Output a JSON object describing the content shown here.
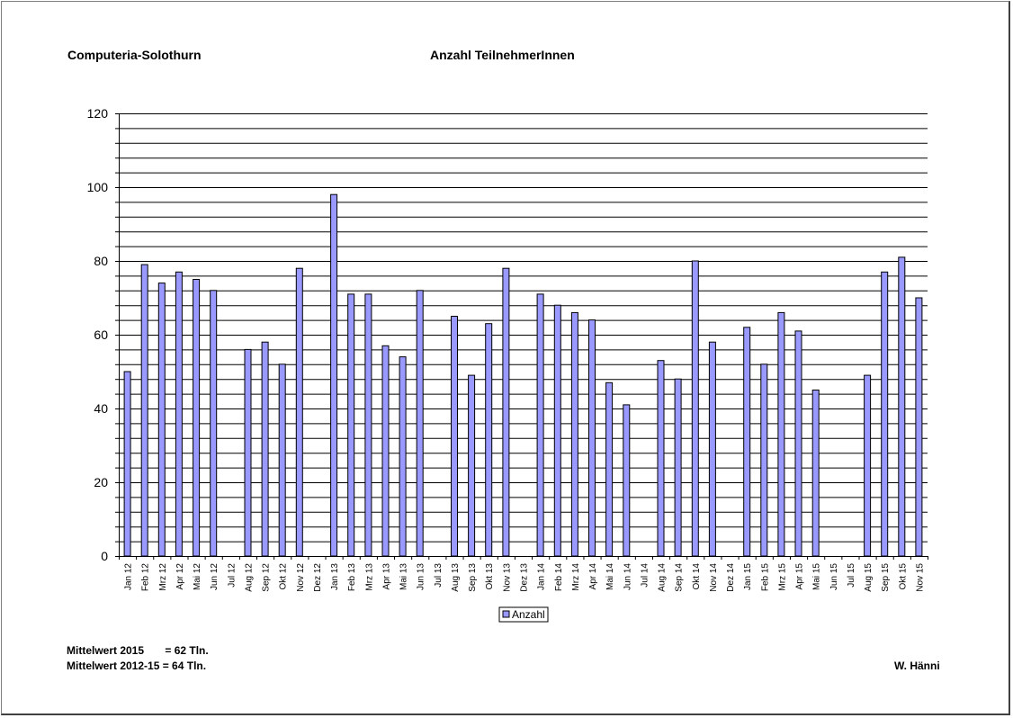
{
  "header": {
    "left_title": "Computeria-Solothurn",
    "center_title": "Anzahl TeilnehmerInnen"
  },
  "footer": {
    "mean_2015": "Mittelwert 2015       = 62 Tln.",
    "mean_2012_15": "Mittelwert 2012-15 = 64 Tln.",
    "author": "W. Hänni"
  },
  "colors": {
    "bar_fill": "#9999FF",
    "bar_stroke": "#000000",
    "grid": "#000000",
    "background": "#FFFFFF"
  },
  "chart_data": {
    "type": "bar",
    "title": "",
    "xlabel": "",
    "ylabel": "",
    "ylim": [
      0,
      120
    ],
    "yticks": [
      0,
      20,
      40,
      60,
      80,
      100,
      120
    ],
    "minor_grid_step": 4,
    "grid": true,
    "legend_position": "bottom-center",
    "categories": [
      "Jan 12",
      "Feb 12",
      "Mrz 12",
      "Apr 12",
      "Mai 12",
      "Jun 12",
      "Jul 12",
      "Aug 12",
      "Sep 12",
      "Okt 12",
      "Nov 12",
      "Dez 12",
      "Jan 13",
      "Feb 13",
      "Mrz 13",
      "Apr 13",
      "Mai 13",
      "Jun 13",
      "Jul 13",
      "Aug 13",
      "Sep 13",
      "Okt 13",
      "Nov 13",
      "Dez 13",
      "Jan 14",
      "Feb 14",
      "Mrz 14",
      "Apr 14",
      "Mai 14",
      "Jun 14",
      "Jul 14",
      "Aug 14",
      "Sep 14",
      "Okt 14",
      "Nov 14",
      "Dez 14",
      "Jan 15",
      "Feb 15",
      "Mrz 15",
      "Apr 15",
      "Mai 15",
      "Jun 15",
      "Jul 15",
      "Aug 15",
      "Sep 15",
      "Okt 15",
      "Nov 15"
    ],
    "series": [
      {
        "name": "Anzahl",
        "values": [
          50,
          79,
          74,
          77,
          75,
          72,
          null,
          56,
          58,
          52,
          78,
          null,
          98,
          71,
          71,
          57,
          54,
          72,
          null,
          65,
          49,
          63,
          78,
          null,
          71,
          68,
          66,
          64,
          47,
          41,
          null,
          53,
          48,
          80,
          58,
          null,
          62,
          52,
          66,
          61,
          45,
          null,
          null,
          49,
          77,
          81,
          70
        ]
      }
    ]
  }
}
